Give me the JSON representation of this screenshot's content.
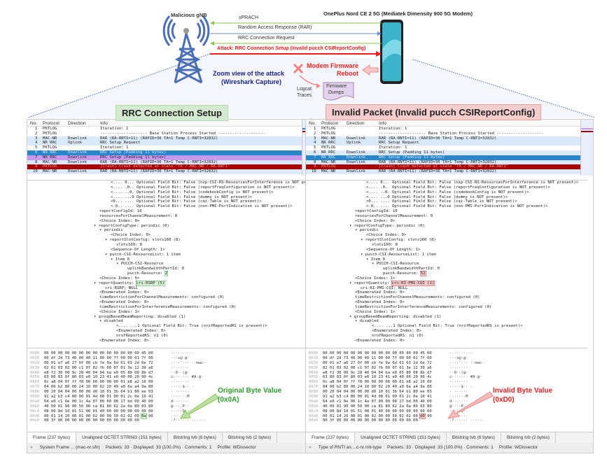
{
  "diagram": {
    "gnb_label": "Malicious gNB",
    "ue_label": "OnePlus Nord CE 2 5G (Mediatek Dimensity 900 5G Modem)",
    "messages": [
      "xPRACH",
      "Random Access Response (RAR)",
      "RRC Connection Request",
      "Attack: RRC Connection Setup (Invalid pucch CSIReportConfig)"
    ],
    "zoom_title": [
      "Zoom view of the attack",
      "(Wireshark Capture)"
    ],
    "reboot": [
      "Modem Firmware",
      "Reboot"
    ],
    "logcat": [
      "Logcat",
      "Traces"
    ],
    "dumps": [
      "Firmware",
      "Dumps"
    ],
    "colors": {
      "uplink": "#8bc34a",
      "downlink": "#6b8fd0",
      "attack": "#ff1a1a",
      "zoom_text": "#1a237e"
    }
  },
  "left": {
    "tag": "RRC Connection Setup",
    "callout": [
      "Original Byte Value",
      "(0x0A)"
    ],
    "status_field": "System Frame ... (mac-nr.sfn)",
    "status_counts": "Packets: 33 · Displayed: 33 (100.0%) · Comments: 1",
    "profile": "Profile: WDissector"
  },
  "right": {
    "tag": "Invalid Packet (Invalid pucch CSIReportConfig)",
    "callout": [
      "Invalid Byte Value",
      "(0xD0)"
    ],
    "status_field": "Type of RNTI as....c-nr.rnti-type",
    "status_counts": "Packets: 33 · Displayed: 33 (100.0%) · Comments: 1",
    "profile": "Profile: WDissector"
  },
  "packet_headers": [
    "No.",
    "Protocol",
    "Direction",
    "Info"
  ],
  "packets": [
    [
      "1",
      "PKTLOG",
      "",
      "Iteration: 1"
    ],
    [
      "2",
      "PKTLOG",
      "",
      "-------------------- Base Station Process Started --------------------"
    ],
    [
      "3",
      "MAC-NR",
      "Downlink",
      "RAR (RA-RNTI=11) (RAPID=36 TA=1 Temp C-RNTI=32832)"
    ],
    [
      "4",
      "NR RRC",
      "Uplink",
      "RRC Setup Request"
    ],
    [
      "5",
      "PKTLOG",
      "",
      "Iteration: 1"
    ],
    [
      "6",
      "NR RRC",
      "Downlink",
      "RRC Setup  (Padding 11 bytes)"
    ],
    [
      "7",
      "NR RRC",
      "Downlink",
      "RRC Setup  (Padding 11 bytes)"
    ],
    [
      "8",
      "MAC-NR",
      "Downlink",
      "RAR (RA-RNTI=11) (RAPID=36 TA=1 Temp C-RNTI=32832)"
    ],
    [
      "9",
      "PKTLOG",
      "",
      "[Crash] Crash detected at state \"TX / MAC-NR / RA-RNTI\""
    ],
    [
      "10",
      "MAC-NR",
      "Downlink",
      "RAR (RA-RNTI=11) (RAPID=36 TA=1 Temp C-RNTI=32832)"
    ]
  ],
  "tree_left": [
    "<.... 0... Optional Field Bit: False (nzp-CSI-RS-ResourcesForInterference is NOT present)>",
    "<.... .0.. Optional Field Bit: False (reportFreqConfiguration is NOT present)>",
    "<.... ..0. Optional Field Bit: False (codebookConfig is NOT present)>",
    "<.... ...0 Optional Field Bit: False (dummy is NOT present)>",
    "<0... .... Optional Field Bit: False (cqi-Table is NOT present)>",
    "<.0.. .... Optional Field Bit: False (non-PMI-PortIndication is NOT present)>",
    "reportConfigId: 10",
    "resourcesForChannelMeasurement: 0",
    "<Choice Index: 0>",
    "reportConfigType: periodic (0)",
    "periodic",
    "<Choice Index: 0>",
    "reportSlotConfig: slots160 (8)",
    "slots160: 8",
    "<Sequence-Of Length: 1>",
    "pucch-CSI-ResourceList: 1 item",
    "Item 0",
    "PUCCH-CSI-Resource",
    "uplinkBandwidthPartId: 0",
    "pucch-Resource: ",
    "2",
    "<Choice Index: 5>",
    "reportQuantity: ",
    "cri-RSRP (5)",
    "cri-RSRP: NULL",
    "<Enumerated Index: 0>",
    "timeRestrictionForChannelMeasurements: configured (0)",
    "<Enumerated Index: 0>",
    "timeRestrictionForInterferenceMeasurements: configured (0)",
    "<Choice Index: 1>",
    "groupBasedBeamReporting: disabled (1)",
    "disabled",
    "<.... ...1 Optional Field Bit: True (nrofReportedRS is present)>",
    "<Enumerated Index: 0>",
    "nrofReportedRS: n1 (0)",
    "<Enumerated Index: 0>"
  ],
  "tree_right_diff": {
    "pucch_resource": "52",
    "choice_index": "<Choice Index: 1>",
    "report_quantity": "cri-RI-PMI-CQI (1)",
    "quantity_null": "cri-RI-PMI-CQI: NULL"
  },
  "hex": [
    [
      "0000",
      "00 00 00 00 00 00 00 00  00 00 00 00 00 00 45 00",
      "··········"
    ],
    [
      "0010",
      "00 df 2d 73 40 00 40 11  00 00 7f 00 00 01 7f 00",
      "··-s@·@·"
    ],
    [
      "0020",
      "00 01 e7 a6 27 0f 00 cb  fe 9a 6d 61 63 2d 6e 72",
      "····'···  ··mac-"
    ],
    [
      "0030",
      "02 01 03 02 00 c1 07 02  fb 00 07 01 3e 12 39 a6",
      "········"
    ],
    [
      "0040",
      "e8 f2 30 00 9c 28 40 04  04 ba e0 05 80 08 8b d7",
      "··0··(@·"
    ],
    [
      "0050",
      "63 80 83 0f 80 03 e0 10  23 41 e0 40 00 20 90 4c",
      "c·······  #A·@·"
    ],
    [
      "0060",
      "0c a8 04 0f ff f8 00 00  00 08 00 01 b8 a2 10 00",
      "········"
    ],
    [
      "0070",
      "04 00 b2 80 00 24 10 00  02 20 49 a0 6a a4 9a 80",
      "·····$··  ·"
    ],
    [
      "0080",
      "00 20 04 04 00 00 00 d0  10 01 3b 64 b1 80 ee 03",
      "· ······"
    ],
    [
      "0090",
      "91 a2 b3 c4 80 00 01 4d  08 01 00 01 2c 0e 10 41",
      "·······M"
    ],
    [
      "00a0",
      "64 e0 c1 0e 00 1c 4a 07  00 00 08 17 bd 00 40 00",
      "d·······"
    ],
    [
      "00b0",
      "40 00 01 90 00 50 00 ca  81 80 62 2a 0a 80 03 80",
      "@····P··"
    ],
    [
      "00c0",
      "08 00 8d 10 01 51 08 01  40 00 00 00 00 00 00 00",
      "·····Q··"
    ],
    [
      "00d0",
      "00 01 14 20 08 01 00 02  00 00 50 02 02 00 ",
      "··· ····"
    ],
    [
      "00e0",
      "00 3f 00 00 00 00 00 00  00 00 00 00 00 00",
      "·?······  ······"
    ]
  ],
  "hex_byte": {
    "left": "0a",
    "right": "d0",
    "after": " 90"
  },
  "tabs": [
    "Frame (237 bytes)",
    "Unaligned OCTET STRING (151 bytes)",
    "Bitstring tvb (6 bytes)",
    "Bitstring tvb (2 bytes)"
  ]
}
